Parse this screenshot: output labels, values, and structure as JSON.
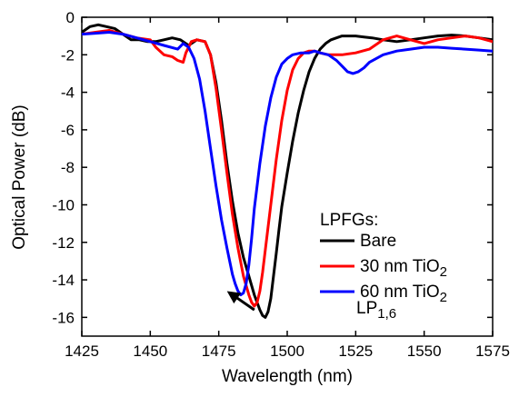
{
  "chart_data": {
    "type": "line",
    "title": "",
    "xlabel": "Wavelength (nm)",
    "ylabel": "Optical Power (dB)",
    "xlim": [
      1425,
      1575
    ],
    "ylim": [
      -17,
      0
    ],
    "xticks": [
      1425,
      1450,
      1475,
      1500,
      1525,
      1550,
      1575
    ],
    "yticks": [
      0,
      -2,
      -4,
      -6,
      -8,
      -10,
      -12,
      -14,
      -16
    ],
    "grid": false,
    "legend": {
      "title": "LPFGs:",
      "placement": "bottom-right",
      "entries": [
        {
          "series": 0,
          "main": "Bare",
          "sub": ""
        },
        {
          "series": 1,
          "main": "30 nm TiO",
          "sub": "2"
        },
        {
          "series": 2,
          "main": "60 nm TiO",
          "sub": "2"
        }
      ]
    },
    "annotation": {
      "text_main": "LP",
      "text_sub": "1,6",
      "arrow_from": [
        1488,
        -15.6
      ],
      "arrow_to": [
        1478,
        -14.6
      ]
    },
    "series": [
      {
        "name": "Bare",
        "color": "#000000",
        "x": [
          1425,
          1428,
          1431,
          1434,
          1437,
          1440,
          1443,
          1446,
          1449,
          1452,
          1455,
          1458,
          1461,
          1464,
          1467,
          1470,
          1472,
          1474,
          1476,
          1478,
          1480,
          1482,
          1484,
          1486,
          1488,
          1490,
          1491,
          1492,
          1493,
          1494,
          1495,
          1496,
          1497,
          1498,
          1500,
          1502,
          1504,
          1506,
          1508,
          1510,
          1512,
          1514,
          1516,
          1518,
          1520,
          1522,
          1525,
          1528,
          1531,
          1535,
          1540,
          1545,
          1550,
          1555,
          1560,
          1565,
          1570,
          1575
        ],
        "y": [
          -0.8,
          -0.5,
          -0.4,
          -0.5,
          -0.6,
          -0.9,
          -1.2,
          -1.2,
          -1.3,
          -1.3,
          -1.2,
          -1.1,
          -1.2,
          -1.5,
          -1.2,
          -1.3,
          -2.0,
          -3.5,
          -5.5,
          -7.8,
          -9.8,
          -11.5,
          -12.8,
          -13.8,
          -14.8,
          -15.6,
          -15.9,
          -16.0,
          -15.7,
          -15.0,
          -13.8,
          -12.6,
          -11.3,
          -10.1,
          -8.3,
          -6.6,
          -5.1,
          -3.9,
          -2.9,
          -2.2,
          -1.7,
          -1.4,
          -1.2,
          -1.1,
          -1.0,
          -1.0,
          -1.0,
          -1.05,
          -1.1,
          -1.2,
          -1.3,
          -1.2,
          -1.1,
          -1.0,
          -0.95,
          -1.0,
          -1.1,
          -1.2
        ]
      },
      {
        "name": "30 nm TiO2",
        "color": "#ff0000",
        "x": [
          1425,
          1430,
          1435,
          1440,
          1445,
          1450,
          1452,
          1455,
          1458,
          1460,
          1462,
          1463,
          1465,
          1467,
          1470,
          1472,
          1474,
          1476,
          1478,
          1480,
          1482,
          1484,
          1486,
          1487,
          1488,
          1489,
          1490,
          1491,
          1492,
          1494,
          1496,
          1498,
          1500,
          1502,
          1504,
          1506,
          1508,
          1510,
          1512,
          1515,
          1520,
          1525,
          1530,
          1535,
          1540,
          1545,
          1550,
          1555,
          1560,
          1565,
          1570,
          1575
        ],
        "y": [
          -0.9,
          -0.8,
          -0.7,
          -0.9,
          -1.1,
          -1.2,
          -1.6,
          -2.0,
          -2.1,
          -2.3,
          -2.4,
          -1.9,
          -1.3,
          -1.2,
          -1.3,
          -2.0,
          -3.8,
          -6.0,
          -8.3,
          -10.5,
          -12.3,
          -13.8,
          -14.8,
          -15.2,
          -15.4,
          -15.2,
          -14.6,
          -13.6,
          -12.4,
          -10.0,
          -7.6,
          -5.5,
          -3.9,
          -2.8,
          -2.2,
          -1.9,
          -1.8,
          -1.8,
          -1.9,
          -2.0,
          -2.0,
          -1.9,
          -1.7,
          -1.2,
          -1.0,
          -1.2,
          -1.4,
          -1.2,
          -1.1,
          -1.0,
          -1.1,
          -1.3
        ]
      },
      {
        "name": "60 nm TiO2",
        "color": "#0000ff",
        "x": [
          1425,
          1430,
          1435,
          1440,
          1445,
          1450,
          1455,
          1460,
          1462,
          1464,
          1466,
          1468,
          1470,
          1472,
          1474,
          1476,
          1478,
          1479,
          1480,
          1481,
          1482,
          1483,
          1484,
          1485,
          1486,
          1487,
          1488,
          1490,
          1492,
          1494,
          1496,
          1498,
          1500,
          1502,
          1505,
          1508,
          1510,
          1512,
          1515,
          1518,
          1520,
          1522,
          1524,
          1526,
          1528,
          1530,
          1535,
          1540,
          1545,
          1550,
          1555,
          1560,
          1565,
          1570,
          1575
        ],
        "y": [
          -0.9,
          -0.85,
          -0.8,
          -0.9,
          -1.1,
          -1.3,
          -1.5,
          -1.7,
          -1.4,
          -1.6,
          -2.2,
          -3.3,
          -5.0,
          -7.0,
          -9.0,
          -10.8,
          -12.3,
          -13.0,
          -13.7,
          -14.2,
          -14.6,
          -14.8,
          -14.7,
          -14.2,
          -13.2,
          -11.8,
          -10.2,
          -7.8,
          -5.8,
          -4.3,
          -3.2,
          -2.5,
          -2.2,
          -2.0,
          -1.9,
          -1.9,
          -1.8,
          -1.9,
          -2.0,
          -2.3,
          -2.6,
          -2.9,
          -3.0,
          -2.9,
          -2.7,
          -2.4,
          -2.0,
          -1.8,
          -1.7,
          -1.6,
          -1.6,
          -1.65,
          -1.7,
          -1.75,
          -1.8
        ]
      }
    ]
  }
}
